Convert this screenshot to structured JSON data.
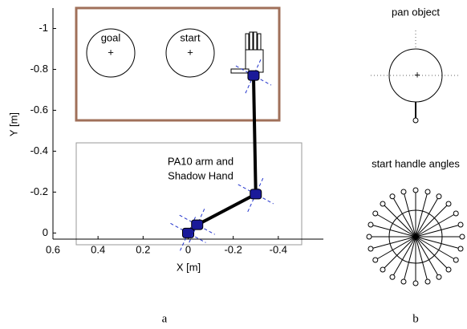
{
  "chart_data": {
    "type": "line",
    "xlabel": "X [m]",
    "ylabel": "Y [m]",
    "x": [
      0,
      -0.04,
      -0.3,
      -0.29
    ],
    "values": [
      0,
      -0.04,
      -0.19,
      -0.77
    ],
    "color": "#000000",
    "xlim": [
      0.6,
      -0.6
    ],
    "ylim": [
      0.03,
      -1.1
    ],
    "xticks": [
      0.6,
      0.4,
      0.2,
      0,
      -0.2,
      -0.4
    ],
    "yticks": [
      0,
      -0.2,
      -0.4,
      -0.6,
      -0.8,
      -1
    ],
    "annotations": [
      "goal",
      "start",
      "PA10 arm and",
      "Shadow Hand"
    ]
  },
  "panels": {
    "a": "a",
    "b": "b",
    "pan_title": "pan object",
    "angles_title": "start handle angles"
  }
}
